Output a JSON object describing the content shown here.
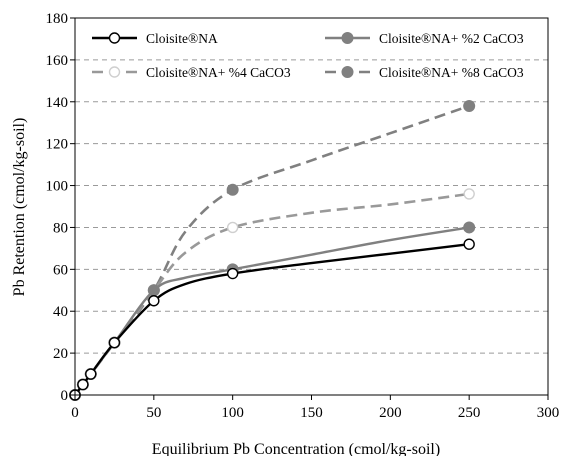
{
  "chart_data": {
    "type": "line",
    "title": "",
    "xlabel": "Equilibrium Pb Concentration (cmol/kg-soil)",
    "ylabel": "Pb Retention (cmol/kg-soil)",
    "xlim": [
      0,
      300
    ],
    "ylim": [
      0,
      180
    ],
    "xticks": [
      0,
      50,
      100,
      150,
      200,
      250,
      300
    ],
    "yticks": [
      0,
      20,
      40,
      60,
      80,
      100,
      120,
      140,
      160,
      180
    ],
    "grid": "horizontal dashed",
    "legend_position": "top (inside plot, two rows)",
    "series": [
      {
        "name": "Cloisite®NA",
        "style": "solid",
        "color": "#000000",
        "marker": "open-circle",
        "curve_x": [
          0,
          5,
          10,
          25,
          50,
          70,
          100,
          150,
          200,
          250
        ],
        "curve_y": [
          0,
          5,
          10,
          25,
          45,
          53,
          58,
          63,
          67.5,
          72
        ],
        "markers_x": [
          0,
          5,
          10,
          25,
          50,
          100,
          250
        ],
        "markers_y": [
          0,
          5,
          10,
          25,
          45,
          58,
          72
        ]
      },
      {
        "name": "Cloisite®NA+ %2 CaCO3",
        "style": "solid",
        "color": "#808080",
        "marker": "filled-circle",
        "curve_x": [
          0,
          5,
          10,
          25,
          50,
          70,
          100,
          150,
          200,
          250
        ],
        "curve_y": [
          0,
          5,
          10,
          25,
          50,
          56,
          60,
          67,
          74,
          80
        ],
        "markers_x": [
          0,
          5,
          10,
          25,
          50,
          100,
          250
        ],
        "markers_y": [
          0,
          5,
          10,
          25,
          50,
          60,
          80
        ]
      },
      {
        "name": "Cloisite®NA+ %4 CaCO3",
        "style": "dashed",
        "color": "#999999",
        "marker": "open-circle",
        "curve_x": [
          0,
          5,
          10,
          25,
          50,
          70,
          100,
          150,
          200,
          250
        ],
        "curve_y": [
          0,
          5,
          10,
          25,
          50,
          68,
          80,
          87,
          91,
          96
        ],
        "markers_x": [
          0,
          5,
          10,
          25,
          50,
          100,
          250
        ],
        "markers_y": [
          0,
          5,
          10,
          25,
          50,
          80,
          96
        ]
      },
      {
        "name": "Cloisite®NA+ %8 CaCO3",
        "style": "dashed",
        "color": "#808080",
        "marker": "filled-circle",
        "curve_x": [
          0,
          5,
          10,
          25,
          50,
          70,
          100,
          150,
          200,
          250
        ],
        "curve_y": [
          0,
          5,
          10,
          25,
          50,
          78,
          98,
          112,
          125,
          138
        ],
        "markers_x": [
          0,
          5,
          10,
          25,
          50,
          100,
          250
        ],
        "markers_y": [
          0,
          5,
          10,
          25,
          50,
          98,
          138
        ]
      }
    ]
  }
}
